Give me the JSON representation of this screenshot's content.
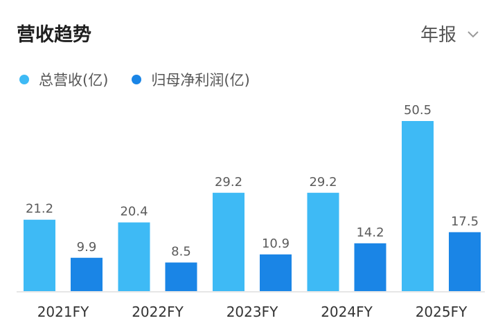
{
  "header": {
    "title": "营收趋势",
    "period": "年报"
  },
  "colors": {
    "revenue": "#3ebaf5",
    "profit": "#1a85e6",
    "axis": "#e6e6e6",
    "label": "#5a5a5a"
  },
  "icons": {
    "period_dropdown": "chevron-down-icon"
  },
  "chart_data": {
    "type": "bar",
    "categories": [
      "2021FY",
      "2022FY",
      "2023FY",
      "2024FY",
      "2025FY"
    ],
    "series": [
      {
        "name": "总营收(亿)",
        "values": [
          21.2,
          20.4,
          29.2,
          29.2,
          50.5
        ]
      },
      {
        "name": "归母净利润(亿)",
        "values": [
          9.9,
          8.5,
          10.9,
          14.2,
          17.5
        ]
      }
    ],
    "value_labels": [
      [
        "21.2",
        "20.4",
        "29.2",
        "29.2",
        "50.5"
      ],
      [
        "9.9",
        "8.5",
        "10.9",
        "14.2",
        "17.5"
      ]
    ],
    "ylim": [
      0,
      50.5
    ],
    "grid": false,
    "legend_position": "top-left"
  }
}
